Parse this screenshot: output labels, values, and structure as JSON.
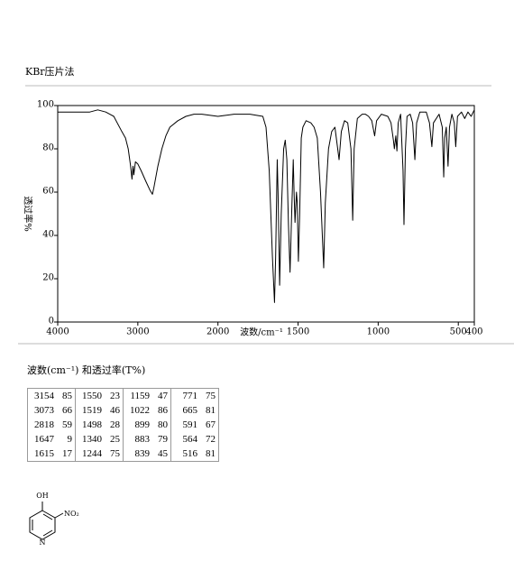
{
  "header": {
    "title": "KBr压片法"
  },
  "chart_data": {
    "type": "line",
    "xlabel": "波数/cm⁻¹",
    "ylabel": "透过率%",
    "xlim": [
      4000,
      400
    ],
    "xscale_break": 2000,
    "xticks": [
      4000,
      3000,
      2000,
      1500,
      1000,
      500,
      400
    ],
    "ylim": [
      0,
      100
    ],
    "yticks": [
      0,
      20,
      40,
      60,
      80,
      100
    ],
    "grid": false,
    "x": [
      4000,
      3600,
      3500,
      3400,
      3300,
      3200,
      3154,
      3120,
      3090,
      3073,
      3060,
      3050,
      3030,
      3000,
      2960,
      2900,
      2850,
      2818,
      2800,
      2750,
      2700,
      2650,
      2600,
      2500,
      2400,
      2300,
      2200,
      2000,
      1900,
      1800,
      1720,
      1700,
      1680,
      1660,
      1647,
      1640,
      1630,
      1625,
      1615,
      1605,
      1590,
      1580,
      1570,
      1560,
      1550,
      1540,
      1530,
      1525,
      1519,
      1510,
      1505,
      1498,
      1490,
      1480,
      1470,
      1450,
      1420,
      1400,
      1380,
      1360,
      1340,
      1330,
      1310,
      1290,
      1270,
      1244,
      1230,
      1210,
      1190,
      1170,
      1159,
      1150,
      1130,
      1100,
      1080,
      1060,
      1040,
      1022,
      1010,
      980,
      940,
      920,
      905,
      899,
      890,
      883,
      875,
      860,
      845,
      839,
      830,
      820,
      800,
      785,
      771,
      760,
      740,
      700,
      680,
      665,
      655,
      620,
      600,
      591,
      585,
      575,
      564,
      555,
      540,
      525,
      516,
      505,
      480,
      460,
      440,
      420,
      400
    ],
    "series": [
      {
        "name": "spectrum",
        "color": "#000000",
        "values": [
          97,
          97,
          98,
          97,
          95,
          88,
          85,
          80,
          72,
          66,
          72,
          68,
          74,
          73,
          70,
          65,
          61,
          59,
          62,
          72,
          80,
          86,
          90,
          93,
          95,
          96,
          96,
          95,
          96,
          96,
          95,
          90,
          70,
          30,
          9,
          30,
          75,
          60,
          17,
          50,
          80,
          84,
          75,
          45,
          23,
          50,
          75,
          60,
          46,
          60,
          55,
          28,
          50,
          85,
          90,
          93,
          92,
          90,
          85,
          60,
          25,
          55,
          80,
          88,
          90,
          75,
          88,
          93,
          92,
          80,
          47,
          80,
          94,
          96,
          96,
          95,
          93,
          86,
          93,
          96,
          95,
          92,
          84,
          80,
          86,
          79,
          92,
          96,
          70,
          45,
          80,
          95,
          96,
          92,
          75,
          92,
          97,
          97,
          92,
          81,
          92,
          96,
          90,
          67,
          85,
          90,
          72,
          90,
          96,
          92,
          81,
          95,
          97,
          94,
          97,
          95,
          98
        ]
      }
    ]
  },
  "peak_table": {
    "title": "波数(cm⁻¹) 和透过率(T%)",
    "rows": [
      [
        [
          3154,
          85
        ],
        [
          1550,
          23
        ],
        [
          1159,
          47
        ],
        [
          771,
          75
        ]
      ],
      [
        [
          3073,
          66
        ],
        [
          1519,
          46
        ],
        [
          1022,
          86
        ],
        [
          665,
          81
        ]
      ],
      [
        [
          2818,
          59
        ],
        [
          1498,
          28
        ],
        [
          899,
          80
        ],
        [
          591,
          67
        ]
      ],
      [
        [
          1647,
          9
        ],
        [
          1340,
          25
        ],
        [
          883,
          79
        ],
        [
          564,
          72
        ]
      ],
      [
        [
          1615,
          17
        ],
        [
          1244,
          75
        ],
        [
          839,
          45
        ],
        [
          516,
          81
        ]
      ]
    ]
  },
  "structure": {
    "labels": [
      "OH",
      "NO₂",
      "N"
    ]
  }
}
